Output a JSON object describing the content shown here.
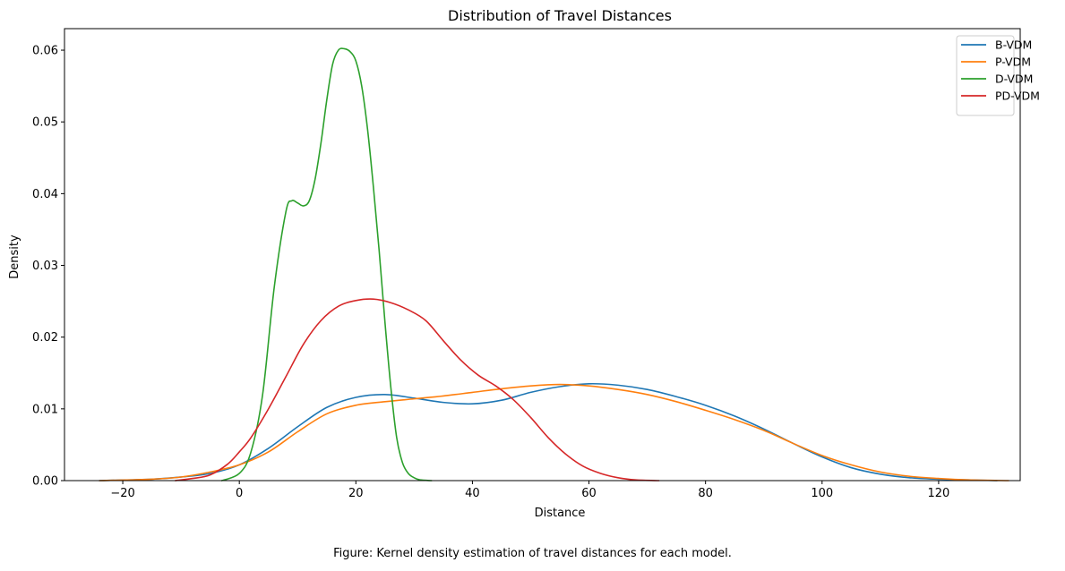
{
  "chart_data": {
    "type": "line",
    "title": "Distribution of Travel Distances",
    "xlabel": "Distance",
    "ylabel": "Density",
    "xlim": [
      -30,
      134
    ],
    "ylim": [
      0,
      0.063
    ],
    "xticks": [
      -20,
      0,
      20,
      40,
      60,
      80,
      100,
      120
    ],
    "xtick_labels": [
      "−20",
      "0",
      "20",
      "40",
      "60",
      "80",
      "100",
      "120"
    ],
    "yticks": [
      0,
      0.01,
      0.02,
      0.03,
      0.04,
      0.05,
      0.06
    ],
    "ytick_labels": [
      "0.00",
      "0.01",
      "0.02",
      "0.03",
      "0.04",
      "0.05",
      "0.06"
    ],
    "grid": false,
    "legend_position": "top-right",
    "series": [
      {
        "name": "B-VDM",
        "color": "#1f77b4",
        "x": [
          -24,
          -15,
          -10,
          -5,
          0,
          5,
          10,
          15,
          20,
          25,
          30,
          35,
          40,
          45,
          50,
          55,
          60,
          65,
          70,
          75,
          80,
          85,
          90,
          95,
          100,
          105,
          110,
          115,
          120,
          125,
          130
        ],
        "y": [
          0.0,
          0.0002,
          0.0005,
          0.001,
          0.0022,
          0.0045,
          0.0075,
          0.0102,
          0.0116,
          0.012,
          0.0115,
          0.0109,
          0.0107,
          0.0112,
          0.0123,
          0.0131,
          0.0135,
          0.0133,
          0.0127,
          0.0117,
          0.0105,
          0.009,
          0.0072,
          0.0052,
          0.0033,
          0.0018,
          0.0009,
          0.0004,
          0.0002,
          0.0001,
          0.0
        ]
      },
      {
        "name": "P-VDM",
        "color": "#ff7f0e",
        "x": [
          -24,
          -15,
          -10,
          -5,
          0,
          5,
          10,
          15,
          20,
          25,
          30,
          35,
          40,
          45,
          50,
          55,
          60,
          65,
          70,
          75,
          80,
          85,
          90,
          95,
          100,
          105,
          110,
          115,
          120,
          125,
          132
        ],
        "y": [
          0.0,
          0.0002,
          0.0005,
          0.0012,
          0.0022,
          0.004,
          0.0068,
          0.0093,
          0.0105,
          0.011,
          0.0114,
          0.0118,
          0.0123,
          0.0128,
          0.0132,
          0.0134,
          0.0132,
          0.0127,
          0.012,
          0.011,
          0.0098,
          0.0085,
          0.007,
          0.0052,
          0.0035,
          0.0022,
          0.0012,
          0.0006,
          0.0003,
          0.0001,
          0.0
        ]
      },
      {
        "name": "D-VDM",
        "color": "#2ca02c",
        "x": [
          -3,
          0,
          2,
          4,
          6,
          8,
          9,
          10,
          11,
          12,
          13,
          14,
          15,
          16,
          17,
          18,
          19,
          20,
          21,
          22,
          23,
          24,
          25,
          26,
          27,
          28,
          29,
          30,
          31,
          33
        ],
        "y": [
          0.0,
          0.001,
          0.004,
          0.012,
          0.027,
          0.0375,
          0.039,
          0.0387,
          0.0383,
          0.039,
          0.042,
          0.047,
          0.053,
          0.058,
          0.06,
          0.0602,
          0.0598,
          0.0585,
          0.055,
          0.049,
          0.041,
          0.032,
          0.022,
          0.013,
          0.006,
          0.0025,
          0.001,
          0.0004,
          0.0001,
          0.0
        ]
      },
      {
        "name": "PD-VDM",
        "color": "#d62728",
        "x": [
          -11,
          -8,
          -5,
          -2,
          0,
          2,
          5,
          8,
          11,
          14,
          17,
          20,
          23,
          26,
          29,
          32,
          35,
          38,
          41,
          44,
          47,
          50,
          53,
          56,
          59,
          62,
          65,
          68,
          72
        ],
        "y": [
          0.0,
          0.0003,
          0.0008,
          0.0023,
          0.004,
          0.006,
          0.01,
          0.0145,
          0.019,
          0.0223,
          0.0243,
          0.0251,
          0.0253,
          0.0248,
          0.0238,
          0.0223,
          0.0195,
          0.0168,
          0.0147,
          0.0132,
          0.0113,
          0.0088,
          0.006,
          0.0037,
          0.002,
          0.001,
          0.0004,
          0.0001,
          0.0
        ]
      }
    ]
  },
  "caption": "Figure: Kernel density estimation of travel distances for each model."
}
